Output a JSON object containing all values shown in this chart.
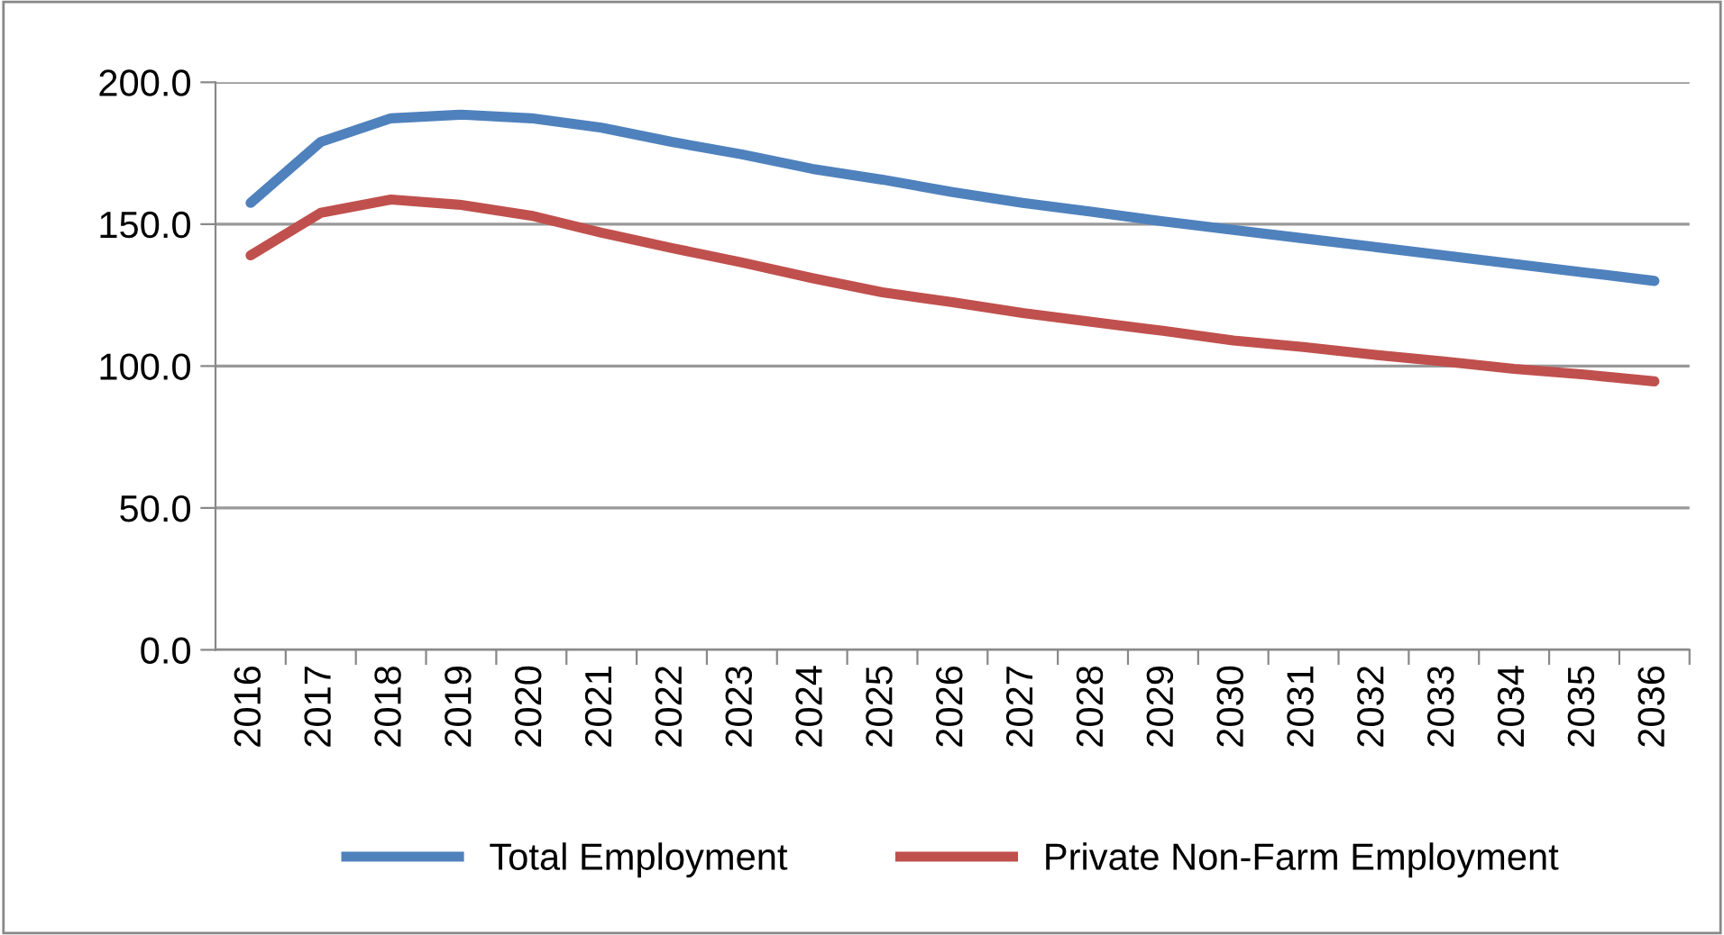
{
  "chart_data": {
    "type": "line",
    "categories": [
      "2016",
      "2017",
      "2018",
      "2019",
      "2020",
      "2021",
      "2022",
      "2023",
      "2024",
      "2025",
      "2026",
      "2027",
      "2028",
      "2029",
      "2030",
      "2031",
      "2032",
      "2033",
      "2034",
      "2035",
      "2036"
    ],
    "series": [
      {
        "name": "Total Employment",
        "color": "#4f81bd",
        "values": [
          157.5,
          179,
          187.3,
          188.6,
          187.3,
          184,
          179,
          174.6,
          169.5,
          165.7,
          161.3,
          157.5,
          154.3,
          151,
          148,
          145,
          142,
          139,
          136,
          133,
          130
        ]
      },
      {
        "name": "Private Non-Farm Employment",
        "color": "#c0504d",
        "values": [
          139,
          154,
          158.7,
          156.8,
          153,
          147,
          141.6,
          136.5,
          131,
          126,
          122.5,
          118.7,
          115.5,
          112.4,
          109,
          106.7,
          104,
          101.6,
          99,
          97,
          94.6
        ]
      }
    ],
    "ylim": [
      0,
      200
    ],
    "yticks": [
      {
        "value": 0,
        "label": "0.0"
      },
      {
        "value": 50,
        "label": "50.0"
      },
      {
        "value": 100,
        "label": "100.0"
      },
      {
        "value": 150,
        "label": "150.0"
      },
      {
        "value": 200,
        "label": "200.0"
      }
    ],
    "grid": "y",
    "legend": "bottom",
    "marker": "none",
    "line_style": "solid"
  }
}
